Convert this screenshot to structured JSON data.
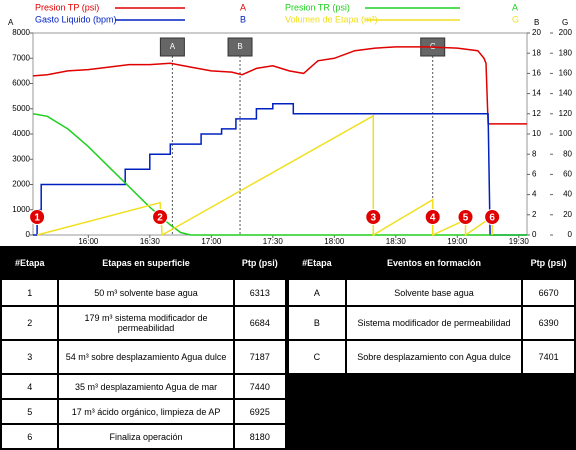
{
  "chart_data": {
    "type": "line",
    "axis_names": {
      "y": "A",
      "y2": "B",
      "y3": "G"
    },
    "xlim": [
      "15:33",
      "19:34"
    ],
    "xticks": [
      "16:00",
      "16:30",
      "17:00",
      "17:30",
      "18:00",
      "18:30",
      "19:00",
      "19:30"
    ],
    "ylim": [
      0,
      8000
    ],
    "yticks": [
      0,
      1000,
      2000,
      3000,
      4000,
      5000,
      6000,
      7000,
      8000
    ],
    "y2lim": [
      0,
      20
    ],
    "y2ticks": [
      0,
      2,
      4,
      6,
      8,
      10,
      12,
      14,
      16,
      18,
      20
    ],
    "y3lim": [
      0,
      200
    ],
    "y3ticks": [
      0,
      20,
      40,
      60,
      80,
      100,
      120,
      140,
      160,
      180,
      200
    ],
    "grid": false,
    "series": [
      {
        "name": "Presion TP (psi)",
        "color": "#e00000",
        "axis": "y",
        "x": [
          "15:33",
          "15:40",
          "15:50",
          "16:00",
          "16:10",
          "16:20",
          "16:30",
          "16:40",
          "16:50",
          "17:00",
          "17:10",
          "17:15",
          "17:22",
          "17:30",
          "17:38",
          "17:45",
          "17:52",
          "18:00",
          "18:10",
          "18:20",
          "18:30",
          "18:45",
          "19:00",
          "19:10",
          "19:13",
          "19:14",
          "19:15",
          "19:34"
        ],
        "values": [
          6300,
          6350,
          6500,
          6550,
          6650,
          6750,
          6750,
          6800,
          6650,
          6500,
          6450,
          6350,
          6600,
          6700,
          6500,
          6400,
          6900,
          7000,
          7300,
          7400,
          7450,
          7450,
          7400,
          7300,
          7000,
          6800,
          4400,
          4400
        ]
      },
      {
        "name": "Gasto Liquido (bpm)",
        "color": "#0020c0",
        "axis": "y2",
        "x": [
          "15:33",
          "15:35",
          "15:35",
          "15:37",
          "15:37",
          "16:18",
          "16:18",
          "16:30",
          "16:30",
          "16:40",
          "16:40",
          "16:55",
          "16:55",
          "17:05",
          "17:05",
          "17:12",
          "17:12",
          "17:22",
          "17:22",
          "17:30",
          "17:30",
          "17:40",
          "17:40",
          "19:15",
          "19:16",
          "19:34"
        ],
        "values": [
          0,
          0,
          2.5,
          2.5,
          5,
          5,
          6.5,
          6.5,
          8,
          8,
          9,
          9,
          10,
          10,
          10.5,
          10.5,
          11.5,
          11.5,
          12.5,
          12.5,
          13,
          13,
          12,
          12,
          0,
          0
        ]
      },
      {
        "name": "Presion TR (psi)",
        "color": "#20d020",
        "axis": "y",
        "x": [
          "15:33",
          "15:40",
          "15:50",
          "16:00",
          "16:10",
          "16:20",
          "16:30",
          "16:40",
          "16:45",
          "16:50",
          "19:34"
        ],
        "values": [
          4800,
          4700,
          4200,
          3500,
          2700,
          1900,
          1100,
          400,
          100,
          0,
          0
        ]
      },
      {
        "name": "Volumen de Etapa (m³)",
        "color": "#f0e020",
        "axis": "y3",
        "x": [
          "15:35",
          "16:35",
          "16:36",
          "18:19",
          "18:19",
          "18:48",
          "18:48",
          "19:04",
          "19:04",
          "19:17",
          "19:17"
        ],
        "values": [
          0,
          32,
          0,
          118,
          0,
          35,
          0,
          15,
          0,
          18,
          0
        ]
      }
    ],
    "markers": [
      {
        "label": "A",
        "x": "16:41"
      },
      {
        "label": "B",
        "x": "17:14"
      },
      {
        "label": "C",
        "x": "18:48"
      }
    ],
    "events": [
      {
        "label": "1",
        "x": "15:35"
      },
      {
        "label": "2",
        "x": "16:35"
      },
      {
        "label": "3",
        "x": "18:19"
      },
      {
        "label": "4",
        "x": "18:48"
      },
      {
        "label": "5",
        "x": "19:04"
      },
      {
        "label": "6",
        "x": "19:17"
      }
    ]
  },
  "stages_table": {
    "headers": [
      "#Etapa",
      "Etapas en superficie",
      "Ptp (psi)"
    ],
    "rows": [
      [
        "1",
        "50 m³ solvente base agua",
        6313
      ],
      [
        "2",
        "179 m³ sistema modificador de permeabilidad",
        6684
      ],
      [
        "3",
        "54 m³ sobre desplazamiento Agua dulce",
        7187
      ],
      [
        "4",
        "35 m³ desplazamiento Agua de mar",
        7440
      ],
      [
        "5",
        "17 m³ ácido orgánico, limpieza de AP",
        6925
      ],
      [
        "6",
        "Finaliza operación",
        8180
      ]
    ]
  },
  "events_table": {
    "headers": [
      "#Etapa",
      "Eventos en formación",
      "Ptp (psi)"
    ],
    "rows": [
      [
        "A",
        "Solvente base agua",
        6670
      ],
      [
        "B",
        "Sistema modificador de permeabilidad",
        6390
      ],
      [
        "C",
        "Sobre desplazamiento con Agua dulce",
        7401
      ]
    ]
  }
}
